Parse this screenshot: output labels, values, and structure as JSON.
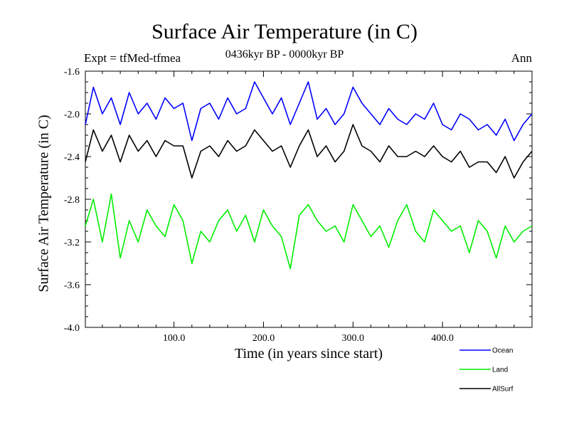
{
  "chart_data": {
    "type": "line",
    "title": "Surface Air Temperature (in C)",
    "subtitle": "0436kyr BP - 0000kyr BP",
    "experiment_label": "Expt = tfMed-tfmea",
    "season_label": "Ann",
    "xlabel": "Time (in years since start)",
    "ylabel": "Surface Air Temperature (in C)",
    "xlim": [
      1,
      500
    ],
    "ylim": [
      -4.0,
      -1.6
    ],
    "xticks": [
      100,
      200,
      300,
      400
    ],
    "xtick_labels": [
      "100.0",
      "200.0",
      "300.0",
      "400.0"
    ],
    "yticks": [
      -1.6,
      -2.0,
      -2.4,
      -2.8,
      -3.2,
      -3.6,
      -4.0
    ],
    "ytick_labels": [
      "-1.6",
      "-2.0",
      "-2.4",
      "-2.8",
      "-3.2",
      "-3.6",
      "-4.0"
    ],
    "grid": false,
    "legend_position": "bottom-right",
    "series": [
      {
        "name": "Ocean",
        "color": "#0000ff",
        "x": [
          1,
          10,
          20,
          30,
          40,
          50,
          60,
          70,
          80,
          90,
          100,
          110,
          120,
          130,
          140,
          150,
          160,
          170,
          180,
          190,
          200,
          210,
          220,
          230,
          240,
          250,
          260,
          270,
          280,
          290,
          300,
          310,
          320,
          330,
          340,
          350,
          360,
          370,
          380,
          390,
          400,
          410,
          420,
          430,
          440,
          450,
          460,
          470,
          480,
          490,
          500
        ],
        "y": [
          -2.1,
          -1.75,
          -2.0,
          -1.85,
          -2.1,
          -1.8,
          -2.0,
          -1.9,
          -2.05,
          -1.85,
          -1.95,
          -1.9,
          -2.25,
          -1.95,
          -1.9,
          -2.05,
          -1.85,
          -2.0,
          -1.95,
          -1.7,
          -1.85,
          -2.0,
          -1.85,
          -2.1,
          -1.9,
          -1.7,
          -2.05,
          -1.95,
          -2.1,
          -2.0,
          -1.75,
          -1.9,
          -2.0,
          -2.1,
          -1.95,
          -2.05,
          -2.1,
          -2.0,
          -2.05,
          -1.9,
          -2.1,
          -2.15,
          -2.0,
          -2.05,
          -2.15,
          -2.1,
          -2.2,
          -2.05,
          -2.25,
          -2.1,
          -2.0
        ]
      },
      {
        "name": "Land",
        "color": "#00ee00",
        "x": [
          1,
          10,
          20,
          30,
          40,
          50,
          60,
          70,
          80,
          90,
          100,
          110,
          120,
          130,
          140,
          150,
          160,
          170,
          180,
          190,
          200,
          210,
          220,
          230,
          240,
          250,
          260,
          270,
          280,
          290,
          300,
          310,
          320,
          330,
          340,
          350,
          360,
          370,
          380,
          390,
          400,
          410,
          420,
          430,
          440,
          450,
          460,
          470,
          480,
          490,
          500
        ],
        "y": [
          -3.05,
          -2.8,
          -3.2,
          -2.75,
          -3.35,
          -3.0,
          -3.2,
          -2.9,
          -3.05,
          -3.15,
          -2.85,
          -3.0,
          -3.4,
          -3.1,
          -3.2,
          -3.0,
          -2.9,
          -3.1,
          -2.95,
          -3.2,
          -2.9,
          -3.05,
          -3.15,
          -3.45,
          -2.95,
          -2.85,
          -3.0,
          -3.1,
          -3.05,
          -3.2,
          -2.85,
          -3.0,
          -3.15,
          -3.05,
          -3.25,
          -3.0,
          -2.85,
          -3.1,
          -3.2,
          -2.9,
          -3.0,
          -3.1,
          -3.05,
          -3.3,
          -3.0,
          -3.1,
          -3.35,
          -3.05,
          -3.2,
          -3.1,
          -3.05
        ]
      },
      {
        "name": "AllSurf",
        "color": "#000000",
        "x": [
          1,
          10,
          20,
          30,
          40,
          50,
          60,
          70,
          80,
          90,
          100,
          110,
          120,
          130,
          140,
          150,
          160,
          170,
          180,
          190,
          200,
          210,
          220,
          230,
          240,
          250,
          260,
          270,
          280,
          290,
          300,
          310,
          320,
          330,
          340,
          350,
          360,
          370,
          380,
          390,
          400,
          410,
          420,
          430,
          440,
          450,
          460,
          470,
          480,
          490,
          500
        ],
        "y": [
          -2.45,
          -2.15,
          -2.35,
          -2.2,
          -2.45,
          -2.2,
          -2.35,
          -2.25,
          -2.4,
          -2.25,
          -2.3,
          -2.3,
          -2.6,
          -2.35,
          -2.3,
          -2.4,
          -2.25,
          -2.35,
          -2.3,
          -2.15,
          -2.25,
          -2.35,
          -2.3,
          -2.5,
          -2.3,
          -2.15,
          -2.4,
          -2.3,
          -2.45,
          -2.35,
          -2.1,
          -2.3,
          -2.35,
          -2.45,
          -2.3,
          -2.4,
          -2.4,
          -2.35,
          -2.4,
          -2.3,
          -2.4,
          -2.45,
          -2.35,
          -2.5,
          -2.45,
          -2.45,
          -2.55,
          -2.4,
          -2.6,
          -2.45,
          -2.35
        ]
      }
    ]
  }
}
